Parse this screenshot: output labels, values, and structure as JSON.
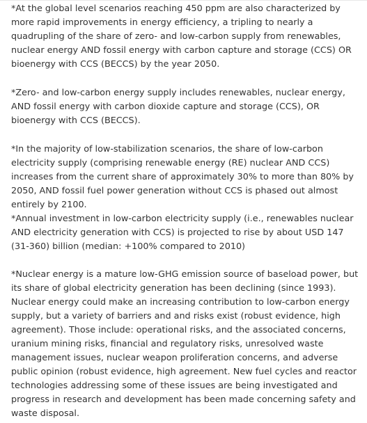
{
  "paragraphs": {
    "p1": "*At the global level scenarios reaching 450 ppm are also characterized by more rapid improvements in energy efficiency, a tripling to nearly a quadrupling of the share of zero- and low-carbon supply from renewables, nuclear energy AND fossil energy with carbon capture and storage (CCS) OR bioenergy with CCS (BECCS) by the year 2050.",
    "p2": "*Zero- and low-carbon energy supply includes renewables, nuclear energy, AND fossil energy with carbon dioxide capture and storage (CCS), OR bioenergy with CCS (BECCS).",
    "p3": "*In the majority of low-stabilization scenarios, the share of low-carbon electricity supply (comprising renewable energy (RE) nuclear AND CCS) increases from the current share of approximately 30% to more than 80% by 2050, AND fossil fuel power generation without CCS is phased out almost entirely by 2100.",
    "p4": "*Annual investment in low-carbon electricity supply (i.e., renewables nuclear AND electricity generation with CCS) is projected to rise by about USD 147 (31-360) billion (median: +100% compared to 2010)",
    "p5": "*Nuclear energy is a mature low-GHG emission source of baseload power, but its share of global electricity generation has been declining (since 1993). Nuclear energy could make an increasing contribution to low-carbon energy supply, but a variety of barriers and and risks exist (robust evidence, high agreement). Those include: operational risks, and the associated concerns, uranium mining risks, financial and regulatory risks, unresolved waste management issues, nuclear weapon proliferation concerns, and adverse public opinion (robust evidence, high agreement. New fuel cycles and reactor technologies addressing some of these issues are being investigated and progress in research and development has been made concerning safety and waste disposal."
  }
}
